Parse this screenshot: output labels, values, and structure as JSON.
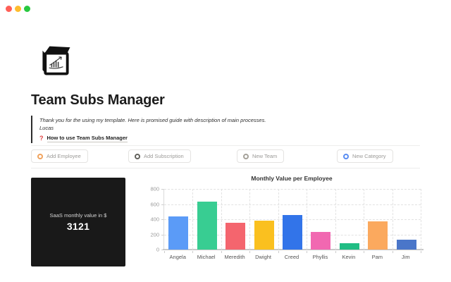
{
  "window": {
    "traffic_lights": [
      "#ff5f57",
      "#febc2e",
      "#28c840"
    ]
  },
  "page": {
    "icon": "cube-with-chart",
    "title": "Team Subs Manager",
    "quote": {
      "line1": "Thank you for the using my template. Here is promised guide with description of main processes.",
      "line2": "Lucas"
    },
    "guide_link": {
      "icon": "?",
      "icon_color": "#e03e3e",
      "label": "How to use Team Subs Manager"
    }
  },
  "actions": [
    {
      "label": "Add Employee",
      "icon": "ring-icon",
      "icon_color": "#f0a35e"
    },
    {
      "label": "Add Subscription",
      "icon": "ring-icon",
      "icon_color": "#64635e"
    },
    {
      "label": "New Team",
      "icon": "ring-icon",
      "icon_color": "#a5a29a"
    },
    {
      "label": "New Category",
      "icon": "ring-icon",
      "icon_color": "#5a8df2"
    }
  ],
  "kpi_card": {
    "label": "SaaS monthly value in $",
    "value": "3121",
    "bg": "#191919"
  },
  "chart_data": {
    "type": "bar",
    "title": "Monthly Value per Employee",
    "categories": [
      "Angela",
      "Michael",
      "Meredith",
      "Dwight",
      "Creed",
      "Phyllis",
      "Kevin",
      "Pam",
      "Jim"
    ],
    "values": [
      440,
      630,
      350,
      380,
      455,
      230,
      80,
      370,
      130
    ],
    "colors": [
      "#5b9bf7",
      "#38cd92",
      "#f4656e",
      "#fac01f",
      "#3274e9",
      "#f168b1",
      "#21bd84",
      "#fba95e",
      "#4a76c9"
    ],
    "xlabel": "",
    "ylabel": "",
    "ylim": [
      0,
      800
    ],
    "yticks": [
      0,
      200,
      400,
      600,
      800
    ],
    "grid": "dashed",
    "legend": "none"
  }
}
